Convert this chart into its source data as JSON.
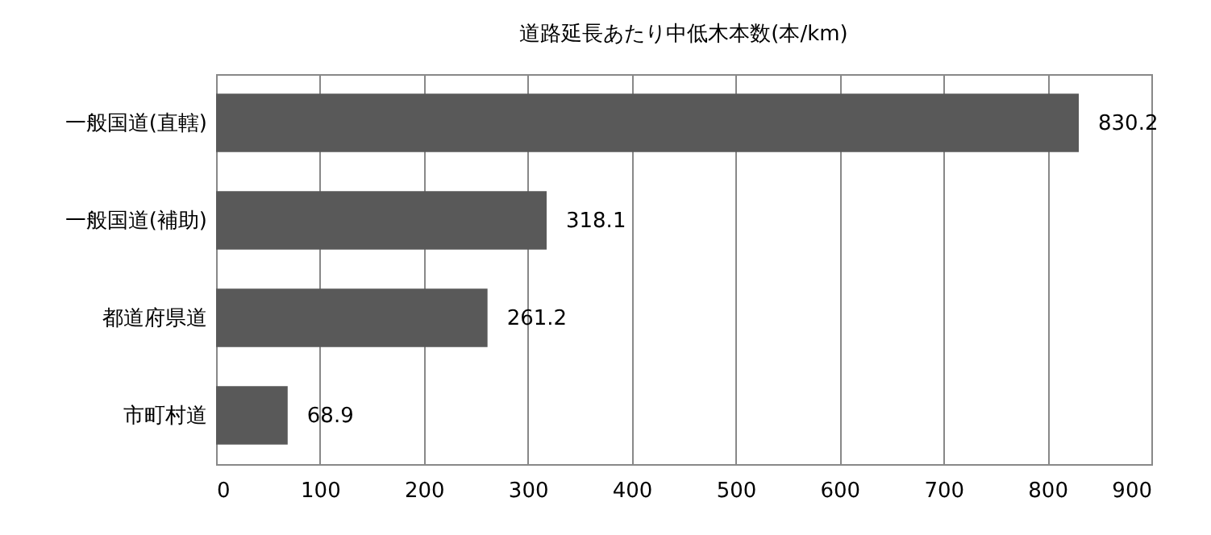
{
  "chart_data": {
    "type": "bar",
    "orientation": "horizontal",
    "title": "道路延長あたり中低木本数(本/km)",
    "categories": [
      "一般国道(直轄)",
      "一般国道(補助)",
      "都道府県道",
      "市町村道"
    ],
    "values": [
      830.2,
      318.1,
      261.2,
      68.9
    ],
    "color": "#595959",
    "xlim": [
      0,
      900
    ],
    "xticks": [
      0,
      100,
      200,
      300,
      400,
      500,
      600,
      700,
      800,
      900
    ],
    "grid": "x",
    "data_labels": true
  }
}
